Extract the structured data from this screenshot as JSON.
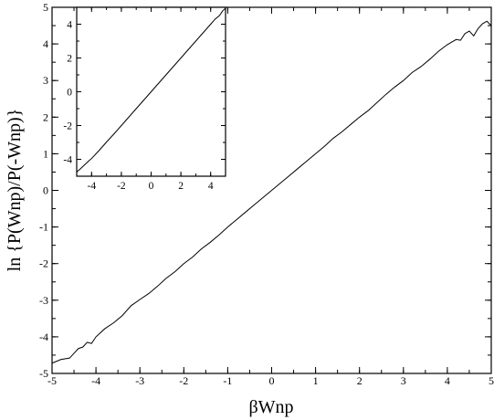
{
  "chart_data": [
    {
      "type": "line",
      "title": "",
      "xlabel": "βWnp",
      "ylabel": "ln {P(Wnp)/P(-Wnp)}",
      "xlim": [
        -5,
        5
      ],
      "ylim": [
        -5,
        5
      ],
      "xticks": [
        "-5",
        "-4",
        "-3",
        "-2",
        "-1",
        "0",
        "1",
        "2",
        "3",
        "4",
        "5"
      ],
      "yticks": [
        "-5",
        "-4",
        "-3",
        "-2",
        "-1",
        "0",
        "1",
        "2",
        "3",
        "4",
        "5"
      ],
      "grid": false,
      "series": [
        {
          "x": [
            -5.0,
            -4.8,
            -4.6,
            -4.5,
            -4.4,
            -4.3,
            -4.2,
            -4.1,
            -4.0,
            -3.8,
            -3.6,
            -3.4,
            -3.2,
            -3.0,
            -2.8,
            -2.6,
            -2.4,
            -2.2,
            -2.0,
            -1.8,
            -1.6,
            -1.4,
            -1.2,
            -1.0,
            -0.8,
            -0.6,
            -0.4,
            -0.2,
            0.0,
            0.2,
            0.4,
            0.6,
            0.8,
            1.0,
            1.2,
            1.4,
            1.6,
            1.8,
            2.0,
            2.2,
            2.4,
            2.6,
            2.8,
            3.0,
            3.2,
            3.4,
            3.6,
            3.8,
            4.0,
            4.2,
            4.3,
            4.4,
            4.5,
            4.6,
            4.7,
            4.8,
            4.9,
            5.0
          ],
          "y": [
            -4.72,
            -4.62,
            -4.58,
            -4.45,
            -4.32,
            -4.28,
            -4.15,
            -4.18,
            -4.0,
            -3.78,
            -3.62,
            -3.42,
            -3.15,
            -2.98,
            -2.82,
            -2.62,
            -2.4,
            -2.22,
            -2.0,
            -1.82,
            -1.6,
            -1.42,
            -1.22,
            -1.0,
            -0.8,
            -0.6,
            -0.4,
            -0.2,
            0.0,
            0.2,
            0.4,
            0.6,
            0.8,
            1.0,
            1.2,
            1.42,
            1.6,
            1.8,
            2.0,
            2.18,
            2.4,
            2.62,
            2.82,
            3.0,
            3.22,
            3.38,
            3.58,
            3.8,
            3.98,
            4.12,
            4.1,
            4.28,
            4.35,
            4.22,
            4.42,
            4.55,
            4.62,
            4.5
          ]
        }
      ]
    },
    {
      "type": "line",
      "title": "",
      "xlabel": "",
      "ylabel": "",
      "xlim": [
        -5,
        5
      ],
      "ylim": [
        -5,
        5
      ],
      "xticks": [
        "-4",
        "-2",
        "0",
        "2",
        "4"
      ],
      "yticks": [
        "-4",
        "-2",
        "0",
        "2",
        "4"
      ],
      "grid": false,
      "series": [
        {
          "x": [
            -5.0,
            -4.8,
            -4.5,
            -4.2,
            -4.0,
            -3.5,
            -3.0,
            -2.5,
            -2.0,
            -1.5,
            -1.0,
            -0.5,
            0.0,
            0.5,
            1.0,
            1.5,
            2.0,
            2.5,
            3.0,
            3.5,
            4.0,
            4.3,
            4.6,
            4.8,
            5.0
          ],
          "y": [
            -4.75,
            -4.6,
            -4.35,
            -4.1,
            -3.95,
            -3.48,
            -2.98,
            -2.5,
            -2.0,
            -1.5,
            -1.0,
            -0.5,
            0.0,
            0.5,
            1.0,
            1.5,
            2.0,
            2.5,
            3.0,
            3.5,
            4.0,
            4.3,
            4.52,
            4.78,
            4.95
          ]
        }
      ]
    }
  ]
}
